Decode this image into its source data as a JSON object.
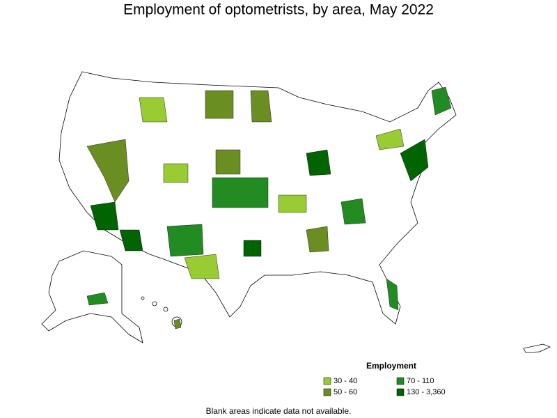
{
  "title": "Employment of optometrists, by area, May 2022",
  "legend": {
    "title": "Employment",
    "items": [
      {
        "label": "30 - 40",
        "color": "#99cc33"
      },
      {
        "label": "50 - 60",
        "color": "#6b8e23"
      },
      {
        "label": "70 - 110",
        "color": "#228b22"
      },
      {
        "label": "130 - 3,360",
        "color": "#006400"
      }
    ]
  },
  "note": "Blank areas indicate data not available."
}
